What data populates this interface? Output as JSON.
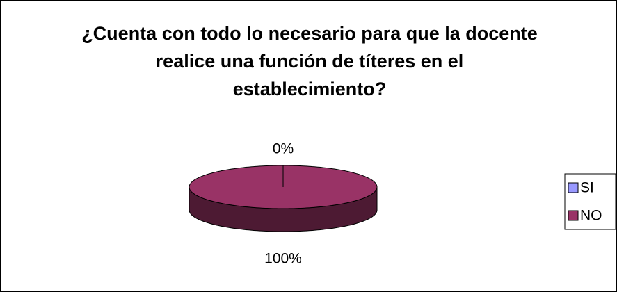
{
  "chart_data": {
    "type": "pie",
    "title": "¿Cuenta con todo lo necesario para que la docente realice una función de títeres en el establecimiento?",
    "categories": [
      "SI",
      "NO"
    ],
    "values": [
      0,
      100
    ],
    "value_labels": [
      "0%",
      "100%"
    ],
    "colors": [
      "#9999ff",
      "#993366"
    ],
    "legend": "right"
  }
}
